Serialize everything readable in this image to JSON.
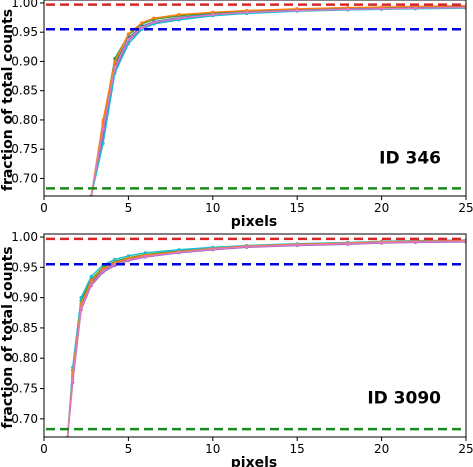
{
  "chart_data": [
    {
      "type": "line",
      "annotation": "ID 346",
      "xlabel": "pixels",
      "ylabel": "fraction of total counts",
      "xlim": [
        0,
        25
      ],
      "ylim": [
        0.67,
        1.005
      ],
      "xticks": [
        "0",
        "5",
        "10",
        "15",
        "20",
        "25"
      ],
      "yticks": [
        "0.70",
        "0.75",
        "0.80",
        "0.85",
        "0.90",
        "0.95",
        "1.00"
      ],
      "x": [
        2.8,
        3.5,
        4.2,
        5.0,
        5.8,
        6.5,
        8,
        10,
        12,
        15,
        18,
        20,
        22,
        25
      ],
      "reference_lines": [
        {
          "y": 0.997,
          "color": "#d62728"
        },
        {
          "y": 0.955,
          "color": "#0000dd"
        },
        {
          "y": 0.683,
          "color": "#1a8a1a"
        }
      ],
      "series": [
        {
          "values": [
            0.67,
            0.795,
            0.905,
            0.945,
            0.964,
            0.972,
            0.978,
            0.983,
            0.986,
            0.989,
            0.991,
            0.992,
            0.993,
            0.994
          ]
        },
        {
          "values": [
            0.67,
            0.78,
            0.895,
            0.94,
            0.96,
            0.968,
            0.975,
            0.981,
            0.984,
            0.988,
            0.99,
            0.991,
            0.992,
            0.993
          ]
        },
        {
          "values": [
            0.67,
            0.77,
            0.885,
            0.935,
            0.957,
            0.966,
            0.973,
            0.979,
            0.983,
            0.987,
            0.989,
            0.99,
            0.991,
            0.992
          ]
        },
        {
          "values": [
            0.67,
            0.76,
            0.88,
            0.93,
            0.955,
            0.964,
            0.971,
            0.978,
            0.982,
            0.986,
            0.988,
            0.989,
            0.99,
            0.991
          ]
        },
        {
          "values": [
            0.67,
            0.8,
            0.9,
            0.947,
            0.966,
            0.974,
            0.98,
            0.984,
            0.987,
            0.99,
            0.992,
            0.993,
            0.994,
            0.995
          ]
        },
        {
          "values": [
            0.67,
            0.785,
            0.89,
            0.938,
            0.958,
            0.967,
            0.974,
            0.98,
            0.984,
            0.987,
            0.989,
            0.99,
            0.991,
            0.992
          ]
        }
      ]
    },
    {
      "type": "line",
      "annotation": "ID 3090",
      "xlabel": "pixels",
      "ylabel": "fraction of total counts",
      "xlim": [
        0,
        25
      ],
      "ylim": [
        0.67,
        1.005
      ],
      "xticks": [
        "0",
        "5",
        "10",
        "15",
        "20",
        "25"
      ],
      "yticks": [
        "0.70",
        "0.75",
        "0.80",
        "0.85",
        "0.90",
        "0.95",
        "1.00"
      ],
      "x": [
        1.4,
        1.7,
        2.2,
        2.8,
        3.5,
        4.2,
        5.0,
        6,
        8,
        10,
        12,
        15,
        18,
        20,
        22,
        25
      ],
      "reference_lines": [
        {
          "y": 0.997,
          "color": "#d62728"
        },
        {
          "y": 0.955,
          "color": "#0000dd"
        },
        {
          "y": 0.683,
          "color": "#1a8a1a"
        }
      ],
      "series": [
        {
          "values": [
            0.67,
            0.78,
            0.895,
            0.93,
            0.95,
            0.96,
            0.966,
            0.971,
            0.977,
            0.981,
            0.985,
            0.988,
            0.99,
            0.992,
            0.993,
            0.994
          ]
        },
        {
          "values": [
            0.67,
            0.77,
            0.885,
            0.925,
            0.945,
            0.956,
            0.963,
            0.969,
            0.975,
            0.98,
            0.984,
            0.987,
            0.989,
            0.991,
            0.992,
            0.993
          ]
        },
        {
          "values": [
            0.67,
            0.76,
            0.88,
            0.92,
            0.942,
            0.953,
            0.961,
            0.967,
            0.974,
            0.979,
            0.983,
            0.986,
            0.988,
            0.99,
            0.991,
            0.992
          ]
        },
        {
          "values": [
            0.67,
            0.785,
            0.9,
            0.935,
            0.954,
            0.963,
            0.969,
            0.974,
            0.979,
            0.983,
            0.986,
            0.989,
            0.991,
            0.993,
            0.994,
            0.995
          ]
        },
        {
          "values": [
            0.67,
            0.775,
            0.89,
            0.928,
            0.948,
            0.958,
            0.965,
            0.97,
            0.976,
            0.981,
            0.985,
            0.988,
            0.99,
            0.992,
            0.993,
            0.994
          ]
        },
        {
          "values": [
            0.67,
            0.765,
            0.883,
            0.922,
            0.944,
            0.955,
            0.962,
            0.968,
            0.975,
            0.98,
            0.984,
            0.987,
            0.989,
            0.991,
            0.992,
            0.993
          ]
        }
      ]
    }
  ],
  "series_colors": [
    "#2ca02c",
    "#1f77b4",
    "#9467bd",
    "#17becf",
    "#ff7f0e",
    "#e377c2"
  ],
  "reference_line_style": "dashed"
}
